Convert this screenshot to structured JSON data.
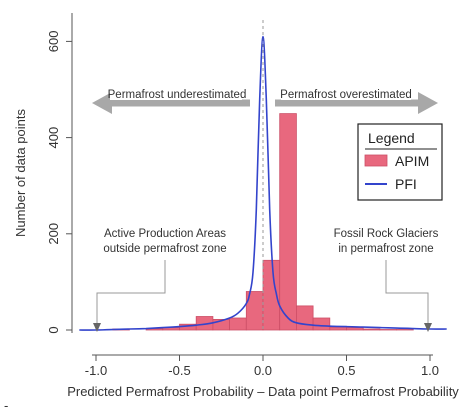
{
  "chart_data": {
    "type": "bar",
    "title": "",
    "xlabel": "Predicted Permafrost Probability – Data point Permafrost Probability",
    "ylabel": "Number of data points",
    "xlim": [
      -1.1,
      1.1
    ],
    "ylim": [
      0,
      650
    ],
    "x_ticks": [
      -1.0,
      -0.5,
      0.0,
      0.5,
      1.0
    ],
    "x_tick_labels": [
      "-1.0",
      "-0.5",
      "0.0",
      "0.5",
      "1.0"
    ],
    "y_ticks": [
      0,
      200,
      400,
      600
    ],
    "y_tick_labels": [
      "0",
      "200",
      "400",
      "600"
    ],
    "grid": false,
    "series": [
      {
        "name": "APIM",
        "kind": "histogram",
        "bin_width": 0.1,
        "bin_lefts": [
          -1.0,
          -0.9,
          -0.8,
          -0.7,
          -0.6,
          -0.5,
          -0.4,
          -0.3,
          -0.2,
          -0.1,
          0.0,
          0.1,
          0.2,
          0.3,
          0.4,
          0.5,
          0.6,
          0.7,
          0.8,
          0.9
        ],
        "values": [
          0,
          2,
          0,
          3,
          5,
          12,
          28,
          22,
          25,
          80,
          145,
          450,
          50,
          25,
          6,
          5,
          2,
          1,
          1,
          0
        ],
        "color": "#e8687e"
      },
      {
        "name": "PFI",
        "kind": "density-line",
        "x": [
          -1.1,
          -1.0,
          -0.9,
          -0.8,
          -0.7,
          -0.6,
          -0.5,
          -0.4,
          -0.3,
          -0.2,
          -0.15,
          -0.1,
          -0.08,
          -0.06,
          -0.04,
          -0.02,
          0.0,
          0.02,
          0.04,
          0.06,
          0.08,
          0.1,
          0.15,
          0.2,
          0.3,
          0.4,
          0.5,
          0.6,
          0.7,
          0.8,
          0.9,
          1.0,
          1.1
        ],
        "values": [
          0,
          0,
          1,
          2,
          3,
          5,
          7,
          10,
          15,
          25,
          35,
          55,
          75,
          120,
          250,
          480,
          610,
          480,
          250,
          120,
          75,
          50,
          25,
          15,
          10,
          8,
          7,
          6,
          5,
          4,
          3,
          2,
          2
        ],
        "color": "#3344cc"
      }
    ],
    "reference_line": {
      "x": 0.0,
      "style": "dashed"
    },
    "legend": {
      "title": "Legend",
      "position": "right",
      "items": [
        "APIM",
        "PFI"
      ]
    },
    "annotations": {
      "arrow_left": "Permafrost underestimated",
      "arrow_right": "Permafrost overestimated",
      "note_left": [
        "Active Production Areas",
        "outside permafrost zone"
      ],
      "note_right": [
        "Fossil Rock Glaciers",
        "in permafrost zone"
      ]
    },
    "footer_mark": "-"
  }
}
